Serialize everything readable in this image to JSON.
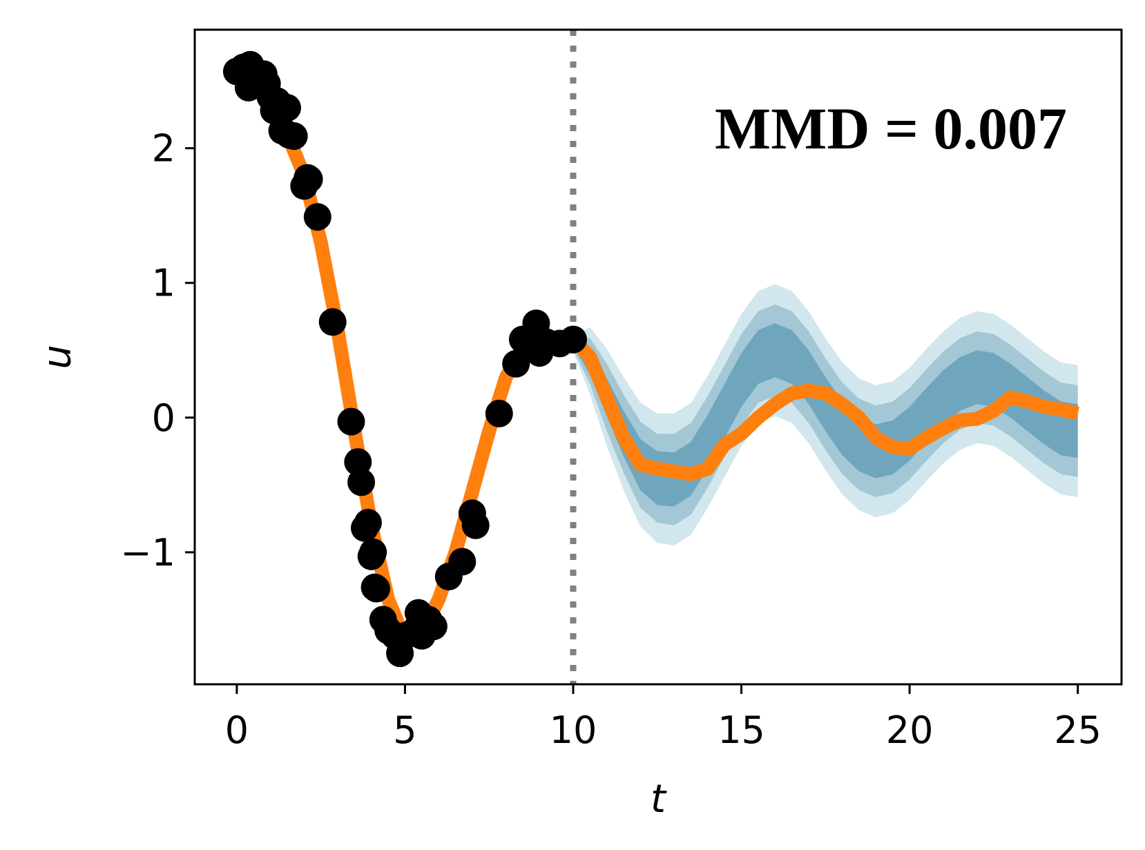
{
  "chart_data": {
    "type": "line",
    "title": "",
    "xlabel": "t",
    "ylabel": "u",
    "xlim": [
      -1.25,
      26.3
    ],
    "ylim": [
      -1.98,
      2.88
    ],
    "x_ticks": [
      0,
      5,
      10,
      15,
      20,
      25
    ],
    "y_ticks": [
      -1,
      0,
      1,
      2
    ],
    "x_tick_labels": [
      "0",
      "5",
      "10",
      "15",
      "20",
      "25"
    ],
    "y_tick_labels": [
      "−1",
      "0",
      "1",
      "2"
    ],
    "grid": false,
    "legend": "none",
    "annotation": "MMD = 0.007",
    "annotation_position": "top-right",
    "vline": {
      "x": 10,
      "style": "dotted",
      "color": "#808080"
    },
    "colors": {
      "line": "#ff7f0e",
      "points": "#000000",
      "band_outer": "#d2e6ed",
      "band_middle": "#a3c7d4",
      "band_inner": "#6fa6be",
      "vline": "#808080"
    },
    "observations": {
      "name": "",
      "x": [
        0.0,
        0.2,
        0.4,
        0.35,
        0.6,
        0.8,
        0.9,
        1.0,
        1.1,
        1.2,
        1.35,
        1.5,
        1.55,
        1.7,
        2.0,
        2.15,
        2.1,
        2.4,
        2.85,
        3.4,
        3.6,
        3.7,
        3.8,
        3.9,
        4.0,
        4.05,
        4.1,
        4.15,
        4.35,
        4.5,
        4.7,
        4.85,
        5.0,
        5.3,
        5.4,
        5.5,
        5.7,
        5.85,
        6.3,
        6.7,
        7.0,
        7.1,
        7.8,
        8.3,
        8.5,
        8.7,
        8.9,
        9.0,
        9.2,
        9.6,
        10.0
      ],
      "y": [
        2.57,
        2.6,
        2.62,
        2.45,
        2.55,
        2.55,
        2.48,
        2.38,
        2.28,
        2.35,
        2.13,
        2.3,
        2.1,
        2.09,
        1.72,
        1.77,
        1.78,
        1.49,
        0.71,
        -0.03,
        -0.33,
        -0.48,
        -0.82,
        -0.78,
        -1.03,
        -1.0,
        -1.26,
        -1.27,
        -1.5,
        -1.58,
        -1.62,
        -1.75,
        -1.62,
        -1.58,
        -1.45,
        -1.62,
        -1.5,
        -1.55,
        -1.18,
        -1.07,
        -0.71,
        -0.8,
        0.03,
        0.4,
        0.58,
        0.52,
        0.7,
        0.48,
        0.56,
        0.55,
        0.58
      ]
    },
    "mean_curve": {
      "name": "",
      "x": [
        0,
        0.5,
        1,
        1.5,
        2,
        2.5,
        3,
        3.5,
        4,
        4.5,
        5,
        5.5,
        6,
        6.5,
        7,
        7.5,
        8,
        8.5,
        9,
        9.5,
        10,
        10.5,
        11,
        11.5,
        12,
        12.5,
        13,
        13.5,
        14,
        14.5,
        15,
        15.5,
        16,
        16.5,
        17,
        17.5,
        18,
        18.5,
        19,
        19.5,
        20,
        20.5,
        21,
        21.5,
        22,
        22.5,
        23,
        23.5,
        24,
        24.5,
        25
      ],
      "y": [
        2.6,
        2.5,
        2.35,
        2.1,
        1.8,
        1.3,
        0.65,
        -0.1,
        -0.8,
        -1.35,
        -1.65,
        -1.6,
        -1.35,
        -1.0,
        -0.55,
        -0.1,
        0.3,
        0.5,
        0.55,
        0.56,
        0.58,
        0.45,
        0.15,
        -0.15,
        -0.35,
        -0.38,
        -0.4,
        -0.42,
        -0.38,
        -0.2,
        -0.12,
        0.0,
        0.1,
        0.18,
        0.2,
        0.18,
        0.1,
        0.0,
        -0.15,
        -0.22,
        -0.23,
        -0.15,
        -0.08,
        -0.02,
        -0.01,
        0.05,
        0.15,
        0.12,
        0.08,
        0.06,
        0.03
      ]
    },
    "uncertainty_bands": {
      "x": [
        10,
        10.5,
        11,
        11.5,
        12,
        12.5,
        13,
        13.5,
        14,
        14.5,
        15,
        15.5,
        16,
        16.5,
        17,
        17.5,
        18,
        18.5,
        19,
        19.5,
        20,
        20.5,
        21,
        21.5,
        22,
        22.5,
        23,
        23.5,
        24,
        24.5,
        25
      ],
      "center": [
        0.55,
        0.42,
        0.15,
        -0.12,
        -0.35,
        -0.45,
        -0.46,
        -0.38,
        -0.18,
        0.05,
        0.28,
        0.45,
        0.5,
        0.45,
        0.3,
        0.1,
        -0.08,
        -0.2,
        -0.25,
        -0.22,
        -0.12,
        0.02,
        0.15,
        0.25,
        0.3,
        0.28,
        0.2,
        0.1,
        0.0,
        -0.08,
        -0.1
      ],
      "inner_half_width": [
        0.02,
        0.1,
        0.14,
        0.17,
        0.19,
        0.2,
        0.2,
        0.2,
        0.2,
        0.2,
        0.2,
        0.2,
        0.2,
        0.2,
        0.2,
        0.2,
        0.2,
        0.2,
        0.2,
        0.2,
        0.2,
        0.2,
        0.2,
        0.2,
        0.2,
        0.2,
        0.2,
        0.2,
        0.2,
        0.2,
        0.2
      ],
      "middle_half_width": [
        0.04,
        0.17,
        0.25,
        0.29,
        0.32,
        0.33,
        0.34,
        0.34,
        0.34,
        0.34,
        0.34,
        0.34,
        0.34,
        0.34,
        0.34,
        0.34,
        0.34,
        0.34,
        0.34,
        0.34,
        0.34,
        0.34,
        0.34,
        0.34,
        0.34,
        0.34,
        0.34,
        0.34,
        0.34,
        0.34,
        0.34
      ],
      "outer_half_width": [
        0.06,
        0.25,
        0.36,
        0.42,
        0.46,
        0.48,
        0.49,
        0.49,
        0.49,
        0.49,
        0.49,
        0.49,
        0.49,
        0.49,
        0.49,
        0.49,
        0.49,
        0.49,
        0.49,
        0.49,
        0.49,
        0.49,
        0.49,
        0.49,
        0.49,
        0.49,
        0.49,
        0.49,
        0.49,
        0.49,
        0.49
      ]
    }
  }
}
